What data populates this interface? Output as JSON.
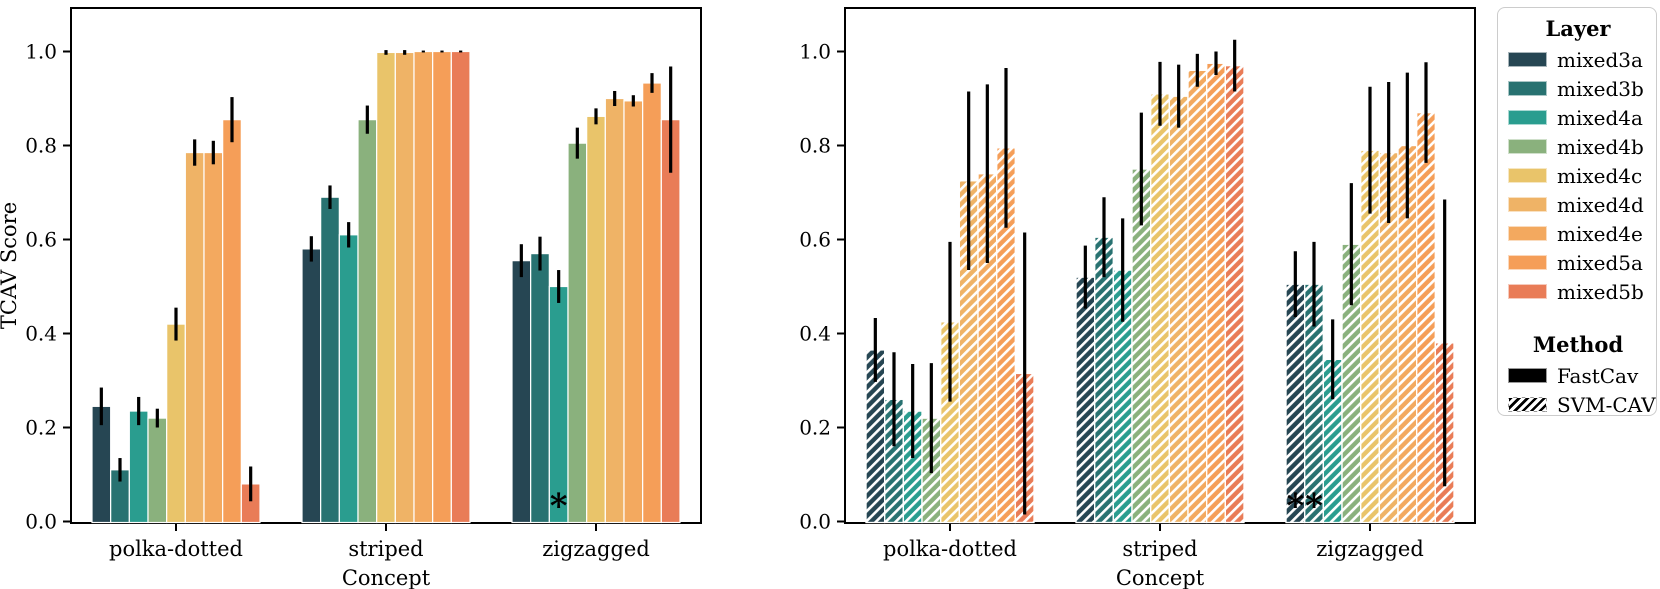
{
  "page": {
    "background": "#ffffff"
  },
  "layers": [
    {
      "name": "mixed3a",
      "color": "#264653"
    },
    {
      "name": "mixed3b",
      "color": "#287271"
    },
    {
      "name": "mixed4a",
      "color": "#2a9d8f"
    },
    {
      "name": "mixed4b",
      "color": "#8ab17d"
    },
    {
      "name": "mixed4c",
      "color": "#e9c46a"
    },
    {
      "name": "mixed4d",
      "color": "#efb366"
    },
    {
      "name": "mixed4e",
      "color": "#f3a95f"
    },
    {
      "name": "mixed5a",
      "color": "#f59e58"
    },
    {
      "name": "mixed5b",
      "color": "#e97c57"
    }
  ],
  "legend": {
    "layer_title": "Layer",
    "method_title": "Method",
    "methods": [
      {
        "label": "FastCav",
        "pattern": "solid",
        "color": "#000000"
      },
      {
        "label": "SVM-CAV",
        "pattern": "hatched",
        "color": "#000000"
      }
    ]
  },
  "chart_data": [
    {
      "id": "left",
      "type": "bar",
      "method": "FastCav",
      "hatched": false,
      "title": "",
      "xlabel": "Concept",
      "ylabel": "TCAV Score",
      "categories": [
        "polka-dotted",
        "striped",
        "zigzagged"
      ],
      "yticks": [
        "0.0",
        "0.2",
        "0.4",
        "0.6",
        "0.8",
        "1.0"
      ],
      "ylim": [
        0,
        1.09
      ],
      "grid": false,
      "series": [
        {
          "name": "mixed3a",
          "values": [
            0.245,
            0.58,
            0.555
          ],
          "errors": [
            0.04,
            0.027,
            0.035
          ]
        },
        {
          "name": "mixed3b",
          "values": [
            0.11,
            0.69,
            0.57
          ],
          "errors": [
            0.025,
            0.025,
            0.036
          ]
        },
        {
          "name": "mixed4a",
          "values": [
            0.235,
            0.61,
            0.5
          ],
          "errors": [
            0.03,
            0.027,
            0.035
          ]
        },
        {
          "name": "mixed4b",
          "values": [
            0.22,
            0.855,
            0.805
          ],
          "errors": [
            0.02,
            0.03,
            0.033
          ]
        },
        {
          "name": "mixed4c",
          "values": [
            0.42,
            0.998,
            0.862
          ],
          "errors": [
            0.035,
            0.005,
            0.017
          ]
        },
        {
          "name": "mixed4d",
          "values": [
            0.785,
            0.998,
            0.9
          ],
          "errors": [
            0.028,
            0.005,
            0.016
          ]
        },
        {
          "name": "mixed4e",
          "values": [
            0.785,
            1.0,
            0.895
          ],
          "errors": [
            0.025,
            0.002,
            0.012
          ]
        },
        {
          "name": "mixed5a",
          "values": [
            0.855,
            1.0,
            0.933
          ],
          "errors": [
            0.048,
            0.002,
            0.021
          ]
        },
        {
          "name": "mixed5b",
          "values": [
            0.08,
            1.0,
            0.855
          ],
          "errors": [
            0.037,
            0.002,
            0.113
          ]
        }
      ],
      "annotations": [
        {
          "category": "zigzagged",
          "layer": "mixed4a",
          "text": "*"
        }
      ]
    },
    {
      "id": "right",
      "type": "bar",
      "method": "SVM-CAV",
      "hatched": true,
      "title": "",
      "xlabel": "Concept",
      "ylabel": "",
      "categories": [
        "polka-dotted",
        "striped",
        "zigzagged"
      ],
      "yticks": [
        "0.0",
        "0.2",
        "0.4",
        "0.6",
        "0.8",
        "1.0"
      ],
      "ylim": [
        0,
        1.09
      ],
      "grid": false,
      "series": [
        {
          "name": "mixed3a",
          "values": [
            0.365,
            0.52,
            0.505
          ],
          "errors": [
            0.068,
            0.067,
            0.07
          ]
        },
        {
          "name": "mixed3b",
          "values": [
            0.26,
            0.605,
            0.505
          ],
          "errors": [
            0.1,
            0.085,
            0.09
          ]
        },
        {
          "name": "mixed4a",
          "values": [
            0.235,
            0.535,
            0.345
          ],
          "errors": [
            0.1,
            0.11,
            0.085
          ]
        },
        {
          "name": "mixed4b",
          "values": [
            0.22,
            0.75,
            0.59
          ],
          "errors": [
            0.117,
            0.12,
            0.13
          ]
        },
        {
          "name": "mixed4c",
          "values": [
            0.425,
            0.91,
            0.79
          ],
          "errors": [
            0.17,
            0.068,
            0.135
          ]
        },
        {
          "name": "mixed4d",
          "values": [
            0.725,
            0.905,
            0.785
          ],
          "errors": [
            0.19,
            0.067,
            0.15
          ]
        },
        {
          "name": "mixed4e",
          "values": [
            0.74,
            0.96,
            0.8
          ],
          "errors": [
            0.19,
            0.035,
            0.155
          ]
        },
        {
          "name": "mixed5a",
          "values": [
            0.795,
            0.975,
            0.87
          ],
          "errors": [
            0.17,
            0.025,
            0.107
          ]
        },
        {
          "name": "mixed5b",
          "values": [
            0.315,
            0.97,
            0.38
          ],
          "errors": [
            0.3,
            0.055,
            0.305
          ]
        }
      ],
      "annotations": [
        {
          "category": "zigzagged",
          "layer": "mixed3a",
          "text": "*"
        },
        {
          "category": "zigzagged",
          "layer": "mixed3b",
          "text": "*"
        }
      ]
    }
  ]
}
